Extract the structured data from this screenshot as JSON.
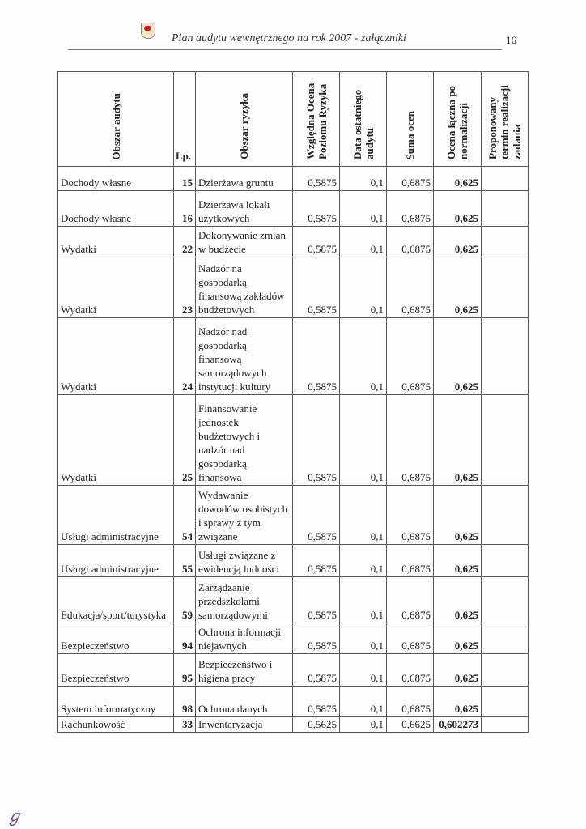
{
  "header": {
    "title": "Plan audytu wewnętrznego na rok 2007 - załączniki",
    "page_number": "16"
  },
  "table": {
    "columns": [
      "Obszar audytu",
      "Lp.",
      "Obszar ryzyka",
      "Względna Ocena Poziomu Ryzyka",
      "Data ostatniego audytu",
      "Suma ocen",
      "Ocena łączna po normalizacji",
      "Proponowany termin realizacji zadania"
    ],
    "rows": [
      {
        "area": "Dochody własne",
        "lp": "15",
        "risk": "Dzierżawa gruntu",
        "rel": "0,5875",
        "date": "0,1",
        "sum": "0,6875",
        "norm": "0,625",
        "term": ""
      },
      {
        "area": "Dochody własne",
        "lp": "16",
        "risk": "Dzierżawa lokali użytkowych",
        "rel": "0,5875",
        "date": "0,1",
        "sum": "0,6875",
        "norm": "0,625",
        "term": ""
      },
      {
        "area": "Wydatki",
        "lp": "22",
        "risk": "Dokonywanie zmian w budżecie",
        "rel": "0,5875",
        "date": "0,1",
        "sum": "0,6875",
        "norm": "0,625",
        "term": ""
      },
      {
        "area": "Wydatki",
        "lp": "23",
        "risk": "Nadzór na gospodarką finansową zakładów budżetowych",
        "rel": "0,5875",
        "date": "0,1",
        "sum": "0,6875",
        "norm": "0,625",
        "term": ""
      },
      {
        "area": "Wydatki",
        "lp": "24",
        "risk": "Nadzór nad gospodarką finansową samorządowych instytucji kultury",
        "rel": "0,5875",
        "date": "0,1",
        "sum": "0,6875",
        "norm": "0,625",
        "term": ""
      },
      {
        "area": "Wydatki",
        "lp": "25",
        "risk": "Finansowanie jednostek budżetowych i nadzór nad gospodarką finansową",
        "rel": "0,5875",
        "date": "0,1",
        "sum": "0,6875",
        "norm": "0,625",
        "term": ""
      },
      {
        "area": "Usługi administracyjne",
        "lp": "54",
        "risk": "Wydawanie dowodów osobistych i sprawy z tym związane",
        "rel": "0,5875",
        "date": "0,1",
        "sum": "0,6875",
        "norm": "0,625",
        "term": ""
      },
      {
        "area": "Usługi administracyjne",
        "lp": "55",
        "risk": "Usługi związane z ewidencją ludności",
        "rel": "0,5875",
        "date": "0,1",
        "sum": "0,6875",
        "norm": "0,625",
        "term": ""
      },
      {
        "area": "Edukacja/sport/turystyka",
        "lp": "59",
        "risk": "Zarządzanie przedszkolami samorządowymi",
        "rel": "0,5875",
        "date": "0,1",
        "sum": "0,6875",
        "norm": "0,625",
        "term": ""
      },
      {
        "area": "Bezpieczeństwo",
        "lp": "94",
        "risk": "Ochrona informacji niejawnych",
        "rel": "0,5875",
        "date": "0,1",
        "sum": "0,6875",
        "norm": "0,625",
        "term": ""
      },
      {
        "area": "Bezpieczeństwo",
        "lp": "95",
        "risk": "Bezpieczeństwo i higiena pracy",
        "rel": "0,5875",
        "date": "0,1",
        "sum": "0,6875",
        "norm": "0,625",
        "term": ""
      },
      {
        "area": "System informatyczny",
        "lp": "98",
        "risk": "Ochrona danych",
        "rel": "0,5875",
        "date": "0,1",
        "sum": "0,6875",
        "norm": "0,625",
        "term": ""
      },
      {
        "area": "Rachunkowość",
        "lp": "33",
        "risk": "Inwentaryzacja",
        "rel": "0,5625",
        "date": "0,1",
        "sum": "0,6625",
        "norm": "0,602273",
        "term": ""
      }
    ]
  }
}
